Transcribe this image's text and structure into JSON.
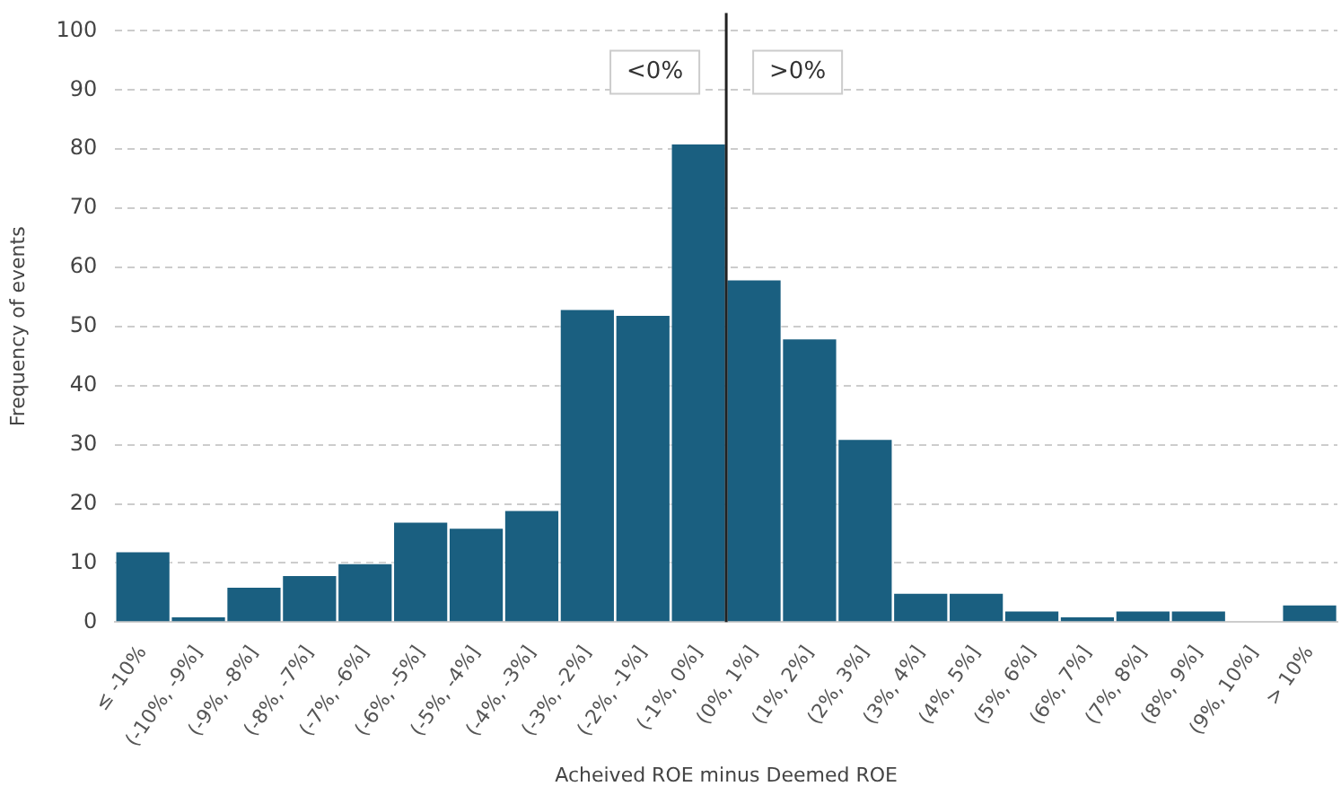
{
  "chart_data": {
    "type": "bar",
    "xlabel": "Acheived ROE minus Deemed ROE",
    "ylabel": "Frequency of events",
    "categories": [
      "≤ -10%",
      "(-10%, -9%]",
      "(-9%, -8%]",
      "(-8%, -7%]",
      "(-7%, -6%]",
      "(-6%, -5%]",
      "(-5%, -4%]",
      "(-4%, -3%]",
      "(-3%, -2%]",
      "(-2%, -1%]",
      "(-1%, 0%]",
      "(0%, 1%]",
      "(1%, 2%]",
      "(2%, 3%]",
      "(3%, 4%]",
      "(4%, 5%]",
      "(5%, 6%]",
      "(6%, 7%]",
      "(7%, 8%]",
      "(8%, 9%]",
      "(9%, 10%]",
      "> 10%"
    ],
    "values": [
      12,
      1,
      6,
      8,
      10,
      17,
      16,
      19,
      53,
      52,
      81,
      58,
      48,
      31,
      5,
      5,
      2,
      1,
      2,
      2,
      0,
      3
    ],
    "color": "#1a5f80",
    "ylim": [
      0,
      100
    ],
    "yticks": [
      0,
      10,
      20,
      30,
      40,
      50,
      60,
      70,
      80,
      90,
      100
    ],
    "grid": "y",
    "legend": false,
    "ref_lines": [
      {
        "axis": "x",
        "value": "(0%, 1%]",
        "color": "#222222"
      }
    ],
    "annotations": [
      "<0%",
      ">0%"
    ]
  }
}
